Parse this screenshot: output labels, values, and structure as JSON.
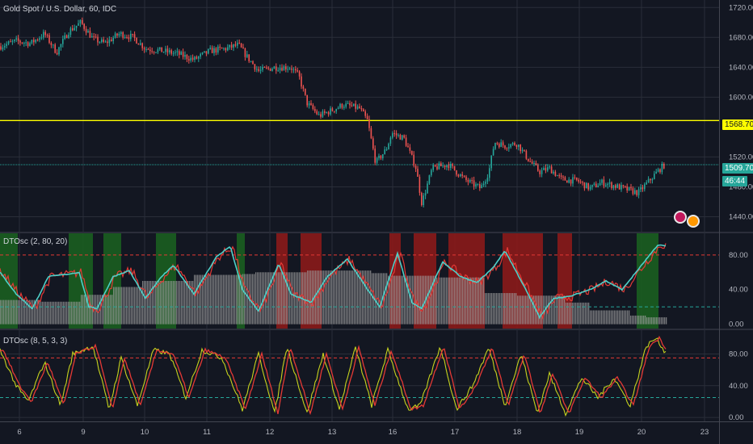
{
  "header": {
    "main_title": "Gold Spot / U.S. Dollar, 60, IDC",
    "osc1_title": "DTOsc (2, 80, 20)",
    "osc2_title": "DTOsc (8, 5, 3, 3)"
  },
  "colors": {
    "background": "#131722",
    "grid": "#2a2e39",
    "candle_up": "#26a69a",
    "candle_down": "#ef5350",
    "level_line": "#ffff00",
    "price_line": "#26a69a",
    "fast_line": "#4dd0c8",
    "slow_line": "#e53935",
    "osc2_fast": "#c6d31e",
    "osc2_slow": "#e53935",
    "green_zone": "#1b5e20",
    "red_zone": "#8b1a1a",
    "histogram": "#9e9e9e"
  },
  "price_scale": {
    "labels": [
      "1720.00",
      "1680.00",
      "1640.00",
      "1600.00",
      "1520.00",
      "1440.00"
    ],
    "level_label": "1568.70",
    "current_label": "1509.70",
    "countdown_label": "46:44",
    "hidden_label": "1480.00"
  },
  "osc1_scale": [
    "80.00",
    "40.00",
    "0.00"
  ],
  "osc2_scale": [
    "80.00",
    "40.00",
    "0.00"
  ],
  "time_axis": [
    "6",
    "9",
    "10",
    "11",
    "12",
    "13",
    "16",
    "17",
    "18",
    "19",
    "20",
    "23"
  ],
  "chart_data": [
    {
      "type": "candlestick",
      "title": "Gold Spot / U.S. Dollar, 60, IDC",
      "ylim": [
        1420,
        1730
      ],
      "y_ticks": [
        1440,
        1480,
        1520,
        1600,
        1640,
        1680,
        1720
      ],
      "x_ticks": [
        "6",
        "9",
        "10",
        "11",
        "12",
        "13",
        "16",
        "17",
        "18",
        "19",
        "20",
        "23"
      ],
      "horizontal_levels": [
        1568.7
      ],
      "last_price": 1509.7,
      "close_path": [
        {
          "x": 0,
          "y": 1668
        },
        {
          "x": 20,
          "y": 1675
        },
        {
          "x": 38,
          "y": 1672
        },
        {
          "x": 55,
          "y": 1685
        },
        {
          "x": 70,
          "y": 1660
        },
        {
          "x": 85,
          "y": 1688
        },
        {
          "x": 100,
          "y": 1700
        },
        {
          "x": 115,
          "y": 1678
        },
        {
          "x": 130,
          "y": 1672
        },
        {
          "x": 148,
          "y": 1685
        },
        {
          "x": 165,
          "y": 1680
        },
        {
          "x": 180,
          "y": 1665
        },
        {
          "x": 200,
          "y": 1662
        },
        {
          "x": 220,
          "y": 1658
        },
        {
          "x": 240,
          "y": 1650
        },
        {
          "x": 260,
          "y": 1662
        },
        {
          "x": 280,
          "y": 1665
        },
        {
          "x": 295,
          "y": 1670
        },
        {
          "x": 305,
          "y": 1655
        },
        {
          "x": 320,
          "y": 1635
        },
        {
          "x": 340,
          "y": 1640
        },
        {
          "x": 360,
          "y": 1640
        },
        {
          "x": 370,
          "y": 1628
        },
        {
          "x": 380,
          "y": 1592
        },
        {
          "x": 395,
          "y": 1575
        },
        {
          "x": 410,
          "y": 1582
        },
        {
          "x": 425,
          "y": 1590
        },
        {
          "x": 445,
          "y": 1585
        },
        {
          "x": 455,
          "y": 1568
        },
        {
          "x": 465,
          "y": 1512
        },
        {
          "x": 478,
          "y": 1530
        },
        {
          "x": 485,
          "y": 1552
        },
        {
          "x": 500,
          "y": 1545
        },
        {
          "x": 515,
          "y": 1505
        },
        {
          "x": 522,
          "y": 1458
        },
        {
          "x": 535,
          "y": 1505
        },
        {
          "x": 555,
          "y": 1510
        },
        {
          "x": 575,
          "y": 1490
        },
        {
          "x": 595,
          "y": 1478
        },
        {
          "x": 605,
          "y": 1500
        },
        {
          "x": 612,
          "y": 1540
        },
        {
          "x": 625,
          "y": 1535
        },
        {
          "x": 640,
          "y": 1538
        },
        {
          "x": 655,
          "y": 1515
        },
        {
          "x": 668,
          "y": 1500
        },
        {
          "x": 680,
          "y": 1505
        },
        {
          "x": 695,
          "y": 1490
        },
        {
          "x": 715,
          "y": 1488
        },
        {
          "x": 730,
          "y": 1478
        },
        {
          "x": 745,
          "y": 1486
        },
        {
          "x": 765,
          "y": 1480
        },
        {
          "x": 790,
          "y": 1472
        },
        {
          "x": 805,
          "y": 1490
        },
        {
          "x": 815,
          "y": 1502
        },
        {
          "x": 825,
          "y": 1512
        }
      ]
    },
    {
      "type": "line",
      "title": "DTOsc (2, 80, 20)",
      "ylim": [
        -5,
        105
      ],
      "y_ticks": [
        0,
        40,
        80
      ],
      "reference_lines": [
        80,
        20
      ],
      "green_zones": [
        [
          0,
          22
        ],
        [
          85,
          115
        ],
        [
          128,
          150
        ],
        [
          193,
          218
        ],
        [
          293,
          303
        ],
        [
          788,
          815
        ]
      ],
      "red_zones": [
        [
          342,
          356
        ],
        [
          372,
          398
        ],
        [
          482,
          496
        ],
        [
          512,
          540
        ],
        [
          555,
          600
        ],
        [
          622,
          672
        ],
        [
          690,
          708
        ]
      ],
      "histogram_steps": [
        {
          "x": 0,
          "y": 28
        },
        {
          "x": 50,
          "y": 26
        },
        {
          "x": 100,
          "y": 34
        },
        {
          "x": 140,
          "y": 43
        },
        {
          "x": 175,
          "y": 50
        },
        {
          "x": 240,
          "y": 57
        },
        {
          "x": 300,
          "y": 58
        },
        {
          "x": 315,
          "y": 60
        },
        {
          "x": 380,
          "y": 62
        },
        {
          "x": 460,
          "y": 59
        },
        {
          "x": 480,
          "y": 56
        },
        {
          "x": 540,
          "y": 54
        },
        {
          "x": 600,
          "y": 36
        },
        {
          "x": 640,
          "y": 33
        },
        {
          "x": 700,
          "y": 25
        },
        {
          "x": 730,
          "y": 16
        },
        {
          "x": 780,
          "y": 10
        },
        {
          "x": 800,
          "y": 8
        },
        {
          "x": 825,
          "y": 8
        }
      ],
      "fast_cycle_points": [
        {
          "x": 0,
          "y": 60
        },
        {
          "x": 20,
          "y": 35
        },
        {
          "x": 40,
          "y": 18
        },
        {
          "x": 60,
          "y": 55
        },
        {
          "x": 85,
          "y": 58
        },
        {
          "x": 98,
          "y": 60
        },
        {
          "x": 110,
          "y": 20
        },
        {
          "x": 120,
          "y": 18
        },
        {
          "x": 140,
          "y": 55
        },
        {
          "x": 160,
          "y": 62
        },
        {
          "x": 180,
          "y": 30
        },
        {
          "x": 200,
          "y": 55
        },
        {
          "x": 215,
          "y": 68
        },
        {
          "x": 240,
          "y": 35
        },
        {
          "x": 268,
          "y": 78
        },
        {
          "x": 285,
          "y": 90
        },
        {
          "x": 300,
          "y": 40
        },
        {
          "x": 320,
          "y": 15
        },
        {
          "x": 345,
          "y": 70
        },
        {
          "x": 360,
          "y": 35
        },
        {
          "x": 385,
          "y": 25
        },
        {
          "x": 405,
          "y": 55
        },
        {
          "x": 430,
          "y": 75
        },
        {
          "x": 455,
          "y": 40
        },
        {
          "x": 470,
          "y": 20
        },
        {
          "x": 492,
          "y": 82
        },
        {
          "x": 510,
          "y": 25
        },
        {
          "x": 522,
          "y": 18
        },
        {
          "x": 548,
          "y": 72
        },
        {
          "x": 570,
          "y": 55
        },
        {
          "x": 590,
          "y": 48
        },
        {
          "x": 610,
          "y": 65
        },
        {
          "x": 625,
          "y": 85
        },
        {
          "x": 648,
          "y": 45
        },
        {
          "x": 668,
          "y": 8
        },
        {
          "x": 685,
          "y": 30
        },
        {
          "x": 705,
          "y": 32
        },
        {
          "x": 730,
          "y": 40
        },
        {
          "x": 750,
          "y": 50
        },
        {
          "x": 770,
          "y": 40
        },
        {
          "x": 800,
          "y": 75
        },
        {
          "x": 815,
          "y": 92
        },
        {
          "x": 825,
          "y": 90
        }
      ]
    },
    {
      "type": "line",
      "title": "DTOsc (8, 5, 3, 3)",
      "ylim": [
        -5,
        110
      ],
      "y_ticks": [
        0,
        40,
        80
      ],
      "reference_lines": [
        75,
        25
      ],
      "fast_cycle_points": [
        {
          "x": 0,
          "y": 85
        },
        {
          "x": 20,
          "y": 40
        },
        {
          "x": 35,
          "y": 20
        },
        {
          "x": 55,
          "y": 70
        },
        {
          "x": 75,
          "y": 15
        },
        {
          "x": 90,
          "y": 80
        },
        {
          "x": 115,
          "y": 90
        },
        {
          "x": 135,
          "y": 10
        },
        {
          "x": 150,
          "y": 75
        },
        {
          "x": 170,
          "y": 15
        },
        {
          "x": 190,
          "y": 85
        },
        {
          "x": 210,
          "y": 80
        },
        {
          "x": 230,
          "y": 25
        },
        {
          "x": 250,
          "y": 85
        },
        {
          "x": 275,
          "y": 75
        },
        {
          "x": 300,
          "y": 10
        },
        {
          "x": 320,
          "y": 80
        },
        {
          "x": 340,
          "y": 5
        },
        {
          "x": 355,
          "y": 90
        },
        {
          "x": 380,
          "y": 5
        },
        {
          "x": 400,
          "y": 80
        },
        {
          "x": 420,
          "y": 10
        },
        {
          "x": 440,
          "y": 88
        },
        {
          "x": 460,
          "y": 15
        },
        {
          "x": 480,
          "y": 85
        },
        {
          "x": 505,
          "y": 10
        },
        {
          "x": 520,
          "y": 15
        },
        {
          "x": 545,
          "y": 90
        },
        {
          "x": 565,
          "y": 10
        },
        {
          "x": 585,
          "y": 40
        },
        {
          "x": 605,
          "y": 88
        },
        {
          "x": 625,
          "y": 15
        },
        {
          "x": 645,
          "y": 80
        },
        {
          "x": 665,
          "y": 5
        },
        {
          "x": 680,
          "y": 55
        },
        {
          "x": 700,
          "y": 5
        },
        {
          "x": 720,
          "y": 50
        },
        {
          "x": 740,
          "y": 25
        },
        {
          "x": 760,
          "y": 50
        },
        {
          "x": 780,
          "y": 15
        },
        {
          "x": 800,
          "y": 90
        },
        {
          "x": 812,
          "y": 100
        },
        {
          "x": 825,
          "y": 80
        }
      ]
    }
  ]
}
